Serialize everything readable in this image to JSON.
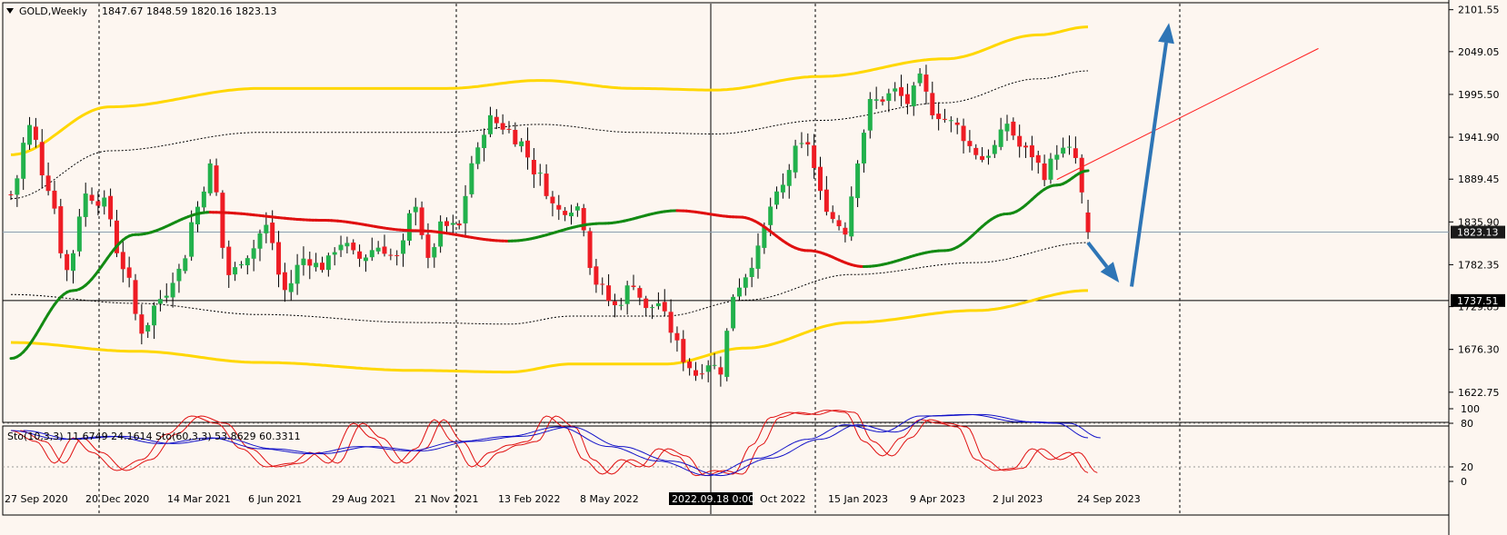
{
  "header": {
    "symbol": "GOLD,Weekly",
    "ohlc": "1847.67 1848.59 1820.16 1823.13"
  },
  "colors": {
    "background": "#fdf6f0",
    "bull": "#22b14c",
    "bear": "#ee1c24",
    "band_outer": "#ffd700",
    "ma_up": "#138a13",
    "ma_down": "#e01010",
    "arrow": "#2e75b6",
    "stoch_fast": "#e01010",
    "stoch_slow": "#1010c8"
  },
  "chart_data": {
    "type": "candlestick",
    "main": {
      "y_ticks": [
        2101.55,
        2049.05,
        1995.5,
        1941.9,
        1889.45,
        1835.9,
        1782.35,
        1729.85,
        1676.3,
        1622.75
      ],
      "ylim": [
        1585,
        2108
      ],
      "x_labels": [
        "27 Sep 2020",
        "20 Dec 2020",
        "14 Mar 2021",
        "6 Jun 2021",
        "29 Aug 2021",
        "21 Nov 2021",
        "13 Feb 2022",
        "8 May 2022",
        "2022.09.18 0:00",
        "Oct 2022",
        "15 Jan 2023",
        "9 Apr 2023",
        "2 Jul 2023",
        "24 Sep 2023"
      ],
      "last_price": "1823.13",
      "hline_price": "1737.51",
      "anchors": [
        {
          "i": 0,
          "p": 1870
        },
        {
          "i": 3,
          "p": 1955
        },
        {
          "i": 6,
          "p": 1880
        },
        {
          "i": 9,
          "p": 1775
        },
        {
          "i": 12,
          "p": 1870
        },
        {
          "i": 15,
          "p": 1860
        },
        {
          "i": 18,
          "p": 1780
        },
        {
          "i": 21,
          "p": 1700
        },
        {
          "i": 24,
          "p": 1740
        },
        {
          "i": 27,
          "p": 1775
        },
        {
          "i": 30,
          "p": 1855
        },
        {
          "i": 32,
          "p": 1905
        },
        {
          "i": 35,
          "p": 1770
        },
        {
          "i": 38,
          "p": 1795
        },
        {
          "i": 41,
          "p": 1830
        },
        {
          "i": 44,
          "p": 1750
        },
        {
          "i": 47,
          "p": 1790
        },
        {
          "i": 50,
          "p": 1780
        },
        {
          "i": 53,
          "p": 1810
        },
        {
          "i": 56,
          "p": 1790
        },
        {
          "i": 59,
          "p": 1805
        },
        {
          "i": 62,
          "p": 1790
        },
        {
          "i": 65,
          "p": 1860
        },
        {
          "i": 67,
          "p": 1785
        },
        {
          "i": 69,
          "p": 1830
        },
        {
          "i": 72,
          "p": 1830
        },
        {
          "i": 74,
          "p": 1910
        },
        {
          "i": 77,
          "p": 1965
        },
        {
          "i": 79,
          "p": 1955
        },
        {
          "i": 82,
          "p": 1935
        },
        {
          "i": 84,
          "p": 1900
        },
        {
          "i": 88,
          "p": 1850
        },
        {
          "i": 91,
          "p": 1855
        },
        {
          "i": 94,
          "p": 1760
        },
        {
          "i": 97,
          "p": 1730
        },
        {
          "i": 100,
          "p": 1760
        },
        {
          "i": 102,
          "p": 1725
        },
        {
          "i": 104,
          "p": 1735
        },
        {
          "i": 106,
          "p": 1700
        },
        {
          "i": 108,
          "p": 1665
        },
        {
          "i": 110,
          "p": 1645
        },
        {
          "i": 112,
          "p": 1660
        },
        {
          "i": 114,
          "p": 1650
        },
        {
          "i": 116,
          "p": 1745
        },
        {
          "i": 118,
          "p": 1770
        },
        {
          "i": 120,
          "p": 1800
        },
        {
          "i": 122,
          "p": 1855
        },
        {
          "i": 124,
          "p": 1880
        },
        {
          "i": 126,
          "p": 1925
        },
        {
          "i": 128,
          "p": 1935
        },
        {
          "i": 130,
          "p": 1870
        },
        {
          "i": 132,
          "p": 1840
        },
        {
          "i": 134,
          "p": 1825
        },
        {
          "i": 136,
          "p": 1915
        },
        {
          "i": 138,
          "p": 1985
        },
        {
          "i": 140,
          "p": 1990
        },
        {
          "i": 142,
          "p": 2000
        },
        {
          "i": 144,
          "p": 1985
        },
        {
          "i": 146,
          "p": 2015
        },
        {
          "i": 148,
          "p": 1975
        },
        {
          "i": 150,
          "p": 1965
        },
        {
          "i": 152,
          "p": 1955
        },
        {
          "i": 154,
          "p": 1930
        },
        {
          "i": 156,
          "p": 1915
        },
        {
          "i": 158,
          "p": 1930
        },
        {
          "i": 160,
          "p": 1960
        },
        {
          "i": 162,
          "p": 1930
        },
        {
          "i": 164,
          "p": 1920
        },
        {
          "i": 166,
          "p": 1895
        },
        {
          "i": 168,
          "p": 1925
        },
        {
          "i": 170,
          "p": 1925
        },
        {
          "i": 171,
          "p": 1915
        },
        {
          "i": 172,
          "p": 1870
        },
        {
          "i": 173,
          "p": 1823
        }
      ],
      "ma_anchors": [
        {
          "i": 0,
          "p": 1665
        },
        {
          "i": 10,
          "p": 1750
        },
        {
          "i": 20,
          "p": 1820
        },
        {
          "i": 32,
          "p": 1848
        },
        {
          "i": 50,
          "p": 1838
        },
        {
          "i": 65,
          "p": 1825
        },
        {
          "i": 80,
          "p": 1812
        },
        {
          "i": 95,
          "p": 1834
        },
        {
          "i": 107,
          "p": 1850
        },
        {
          "i": 117,
          "p": 1842
        },
        {
          "i": 128,
          "p": 1800
        },
        {
          "i": 137,
          "p": 1780
        },
        {
          "i": 150,
          "p": 1800
        },
        {
          "i": 160,
          "p": 1846
        },
        {
          "i": 168,
          "p": 1882
        },
        {
          "i": 173,
          "p": 1900
        }
      ],
      "band_upper_anchors": [
        {
          "i": 0,
          "p": 1920
        },
        {
          "i": 16,
          "p": 1980
        },
        {
          "i": 40,
          "p": 2003
        },
        {
          "i": 70,
          "p": 2003
        },
        {
          "i": 85,
          "p": 2013
        },
        {
          "i": 100,
          "p": 2003
        },
        {
          "i": 113,
          "p": 2001
        },
        {
          "i": 130,
          "p": 2018
        },
        {
          "i": 150,
          "p": 2040
        },
        {
          "i": 165,
          "p": 2070
        },
        {
          "i": 173,
          "p": 2080
        }
      ],
      "band_lower_anchors": [
        {
          "i": 0,
          "p": 1685
        },
        {
          "i": 20,
          "p": 1674
        },
        {
          "i": 40,
          "p": 1660
        },
        {
          "i": 65,
          "p": 1650
        },
        {
          "i": 80,
          "p": 1648
        },
        {
          "i": 90,
          "p": 1658
        },
        {
          "i": 105,
          "p": 1658
        },
        {
          "i": 118,
          "p": 1678
        },
        {
          "i": 135,
          "p": 1710
        },
        {
          "i": 155,
          "p": 1725
        },
        {
          "i": 173,
          "p": 1750
        }
      ],
      "trendline": {
        "from": {
          "i": 168,
          "p": 1889
        },
        "to": {
          "i": 210,
          "p": 2053
        }
      },
      "arrows": [
        {
          "from": {
            "i": 173,
            "p": 1810
          },
          "to": {
            "i": 178,
            "p": 1760
          }
        },
        {
          "from": {
            "i": 180,
            "p": 1755
          },
          "to": {
            "i": 186,
            "p": 2085
          }
        }
      ]
    },
    "stochastic": {
      "label": "Sto(10,3,3) 11.6749 24.1614  Sto(60,3,3) 53.8629 60.3311",
      "y_ticks": [
        100,
        80,
        20,
        0
      ],
      "ylim": [
        0,
        100
      ],
      "fast_anchors": [
        {
          "i": 0,
          "v": 70
        },
        {
          "i": 4,
          "v": 55
        },
        {
          "i": 7,
          "v": 25
        },
        {
          "i": 10,
          "v": 60
        },
        {
          "i": 13,
          "v": 40
        },
        {
          "i": 17,
          "v": 15
        },
        {
          "i": 21,
          "v": 30
        },
        {
          "i": 25,
          "v": 65
        },
        {
          "i": 29,
          "v": 90
        },
        {
          "i": 33,
          "v": 80
        },
        {
          "i": 37,
          "v": 45
        },
        {
          "i": 41,
          "v": 20
        },
        {
          "i": 45,
          "v": 25
        },
        {
          "i": 48,
          "v": 40
        },
        {
          "i": 51,
          "v": 25
        },
        {
          "i": 55,
          "v": 80
        },
        {
          "i": 58,
          "v": 60
        },
        {
          "i": 62,
          "v": 25
        },
        {
          "i": 65,
          "v": 45
        },
        {
          "i": 68,
          "v": 85
        },
        {
          "i": 71,
          "v": 55
        },
        {
          "i": 74,
          "v": 20
        },
        {
          "i": 77,
          "v": 40
        },
        {
          "i": 80,
          "v": 50
        },
        {
          "i": 83,
          "v": 55
        },
        {
          "i": 86,
          "v": 90
        },
        {
          "i": 89,
          "v": 75
        },
        {
          "i": 92,
          "v": 30
        },
        {
          "i": 95,
          "v": 10
        },
        {
          "i": 98,
          "v": 30
        },
        {
          "i": 101,
          "v": 20
        },
        {
          "i": 104,
          "v": 45
        },
        {
          "i": 107,
          "v": 35
        },
        {
          "i": 110,
          "v": 8
        },
        {
          "i": 113,
          "v": 15
        },
        {
          "i": 116,
          "v": 10
        },
        {
          "i": 119,
          "v": 50
        },
        {
          "i": 122,
          "v": 88
        },
        {
          "i": 125,
          "v": 95
        },
        {
          "i": 128,
          "v": 92
        },
        {
          "i": 131,
          "v": 98
        },
        {
          "i": 134,
          "v": 95
        },
        {
          "i": 137,
          "v": 55
        },
        {
          "i": 140,
          "v": 35
        },
        {
          "i": 143,
          "v": 60
        },
        {
          "i": 146,
          "v": 85
        },
        {
          "i": 149,
          "v": 80
        },
        {
          "i": 152,
          "v": 75
        },
        {
          "i": 155,
          "v": 30
        },
        {
          "i": 158,
          "v": 15
        },
        {
          "i": 161,
          "v": 18
        },
        {
          "i": 164,
          "v": 45
        },
        {
          "i": 167,
          "v": 30
        },
        {
          "i": 170,
          "v": 40
        },
        {
          "i": 173,
          "v": 12
        }
      ],
      "slow_anchors": [
        {
          "i": 0,
          "v": 70
        },
        {
          "i": 8,
          "v": 58
        },
        {
          "i": 16,
          "v": 62
        },
        {
          "i": 24,
          "v": 52
        },
        {
          "i": 32,
          "v": 60
        },
        {
          "i": 40,
          "v": 45
        },
        {
          "i": 48,
          "v": 38
        },
        {
          "i": 56,
          "v": 48
        },
        {
          "i": 64,
          "v": 42
        },
        {
          "i": 72,
          "v": 55
        },
        {
          "i": 80,
          "v": 62
        },
        {
          "i": 88,
          "v": 75
        },
        {
          "i": 96,
          "v": 48
        },
        {
          "i": 104,
          "v": 28
        },
        {
          "i": 112,
          "v": 8
        },
        {
          "i": 120,
          "v": 32
        },
        {
          "i": 128,
          "v": 58
        },
        {
          "i": 134,
          "v": 78
        },
        {
          "i": 140,
          "v": 68
        },
        {
          "i": 146,
          "v": 90
        },
        {
          "i": 154,
          "v": 92
        },
        {
          "i": 162,
          "v": 82
        },
        {
          "i": 168,
          "v": 80
        },
        {
          "i": 173,
          "v": 60
        }
      ]
    }
  }
}
